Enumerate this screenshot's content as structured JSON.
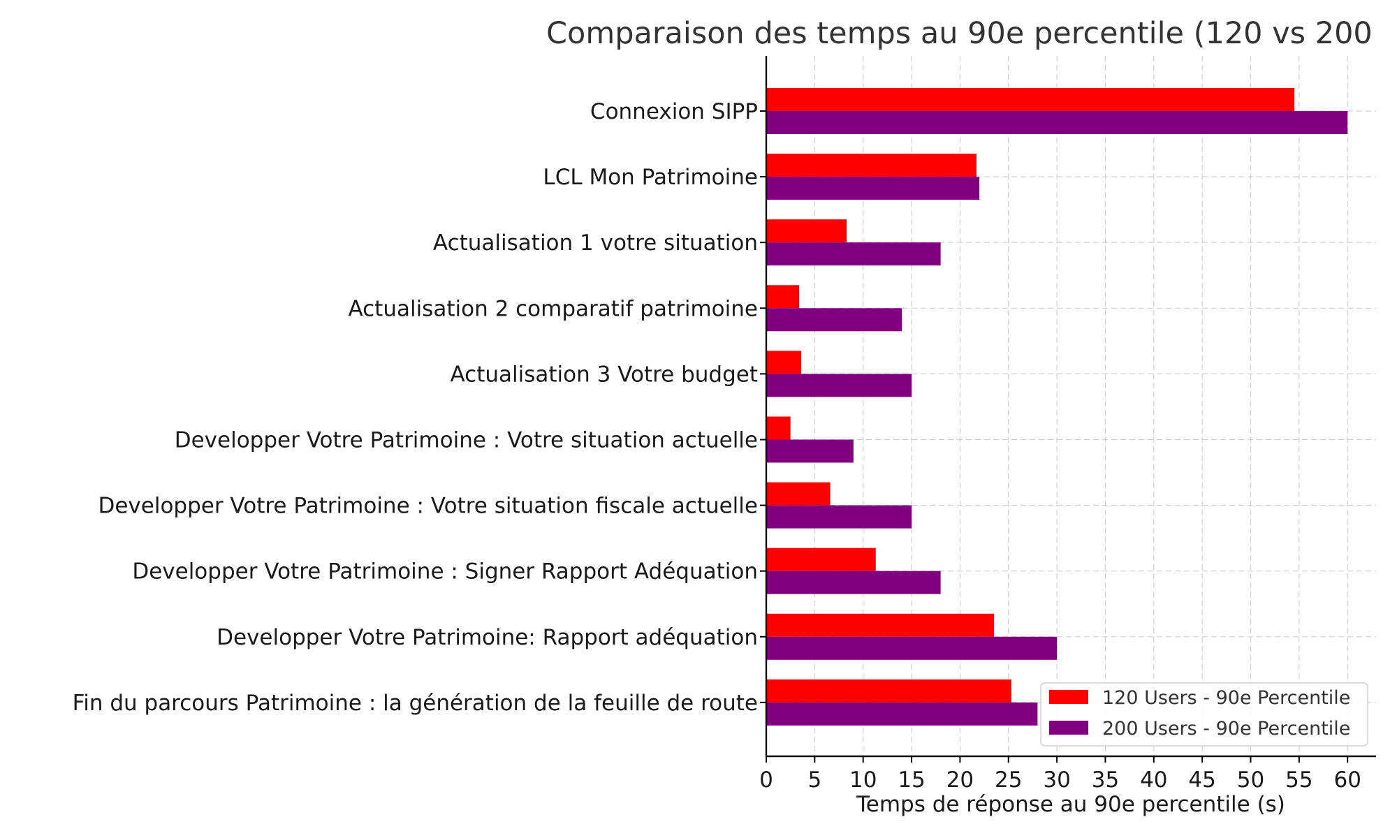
{
  "chart_data": {
    "type": "bar",
    "orientation": "horizontal",
    "title": "Comparaison des temps au 90e percentile (120 vs 200",
    "xlabel": "Temps de réponse au 90e percentile (s)",
    "ylabel": "",
    "xlim": [
      0,
      63
    ],
    "xticks": [
      0,
      5,
      10,
      15,
      20,
      25,
      30,
      35,
      40,
      45,
      50,
      55,
      60
    ],
    "grid": true,
    "legend_position": "bottom-right",
    "categories": [
      "Connexion SIPP",
      "LCL Mon Patrimoine",
      "Actualisation 1 votre situation",
      "Actualisation 2 comparatif patrimoine",
      "Actualisation 3 Votre budget",
      "Developper Votre Patrimoine : Votre situation actuelle",
      "Developper Votre Patrimoine : Votre situation fiscale actuelle",
      "Developper Votre Patrimoine : Signer Rapport Adéquation",
      "Developper Votre Patrimoine: Rapport adéquation",
      "Fin du parcours Patrimoine : la génération de la feuille de route"
    ],
    "series": [
      {
        "name": "120 Users - 90e Percentile",
        "color": "#ff0000",
        "values": [
          54.5,
          21.7,
          8.3,
          3.4,
          3.6,
          2.5,
          6.6,
          11.3,
          23.5,
          25.3
        ]
      },
      {
        "name": "200 Users - 90e Percentile",
        "color": "#800080",
        "values": [
          60,
          22,
          18,
          14,
          15,
          9,
          15,
          18,
          30,
          28
        ]
      }
    ]
  }
}
